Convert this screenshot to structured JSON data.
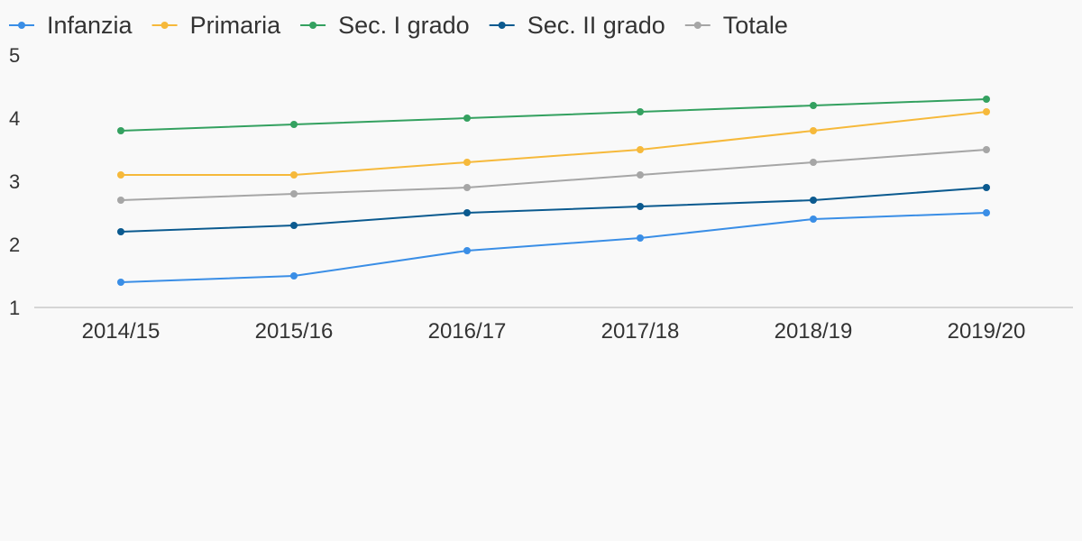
{
  "chart_data": {
    "type": "line",
    "categories": [
      "2014/15",
      "2015/16",
      "2016/17",
      "2017/18",
      "2018/19",
      "2019/20"
    ],
    "series": [
      {
        "name": "Infanzia",
        "color": "#3a8ee6",
        "values": [
          1.4,
          1.5,
          1.9,
          2.1,
          2.4,
          2.5
        ]
      },
      {
        "name": "Primaria",
        "color": "#f6b93b",
        "values": [
          3.1,
          3.1,
          3.3,
          3.5,
          3.8,
          4.1
        ]
      },
      {
        "name": "Sec. I grado",
        "color": "#34a160",
        "values": [
          3.8,
          3.9,
          4.0,
          4.1,
          4.2,
          4.3
        ]
      },
      {
        "name": "Sec. II grado",
        "color": "#0b5a8f",
        "values": [
          2.2,
          2.3,
          2.5,
          2.6,
          2.7,
          2.9
        ]
      },
      {
        "name": "Totale",
        "color": "#a6a6a6",
        "values": [
          2.7,
          2.8,
          2.9,
          3.1,
          3.3,
          3.5
        ]
      }
    ],
    "y_ticks": [
      "1",
      "2",
      "3",
      "4",
      "5"
    ],
    "ylim": [
      1,
      5
    ],
    "grid": false,
    "legend_position": "top-left",
    "axis_color": "#d6d6d6"
  }
}
